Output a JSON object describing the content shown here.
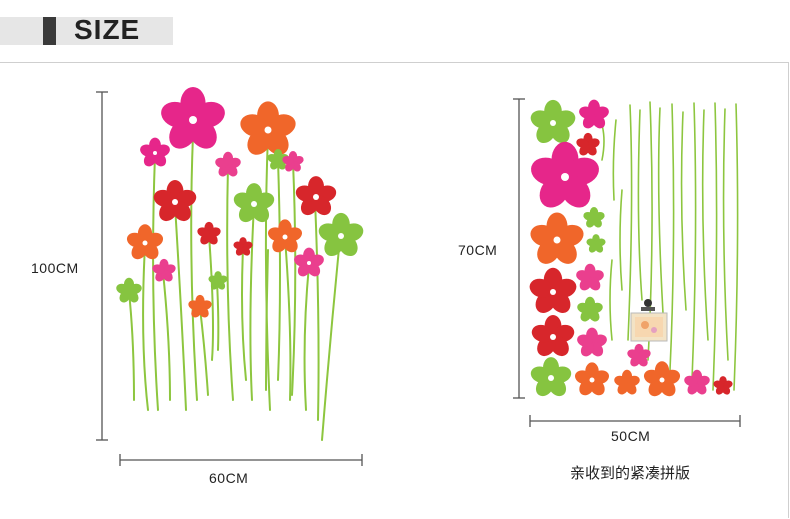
{
  "header": {
    "title": "SIZE"
  },
  "left_panel": {
    "height_label": "100CM",
    "width_label": "60CM"
  },
  "right_panel": {
    "height_label": "70CM",
    "width_label": "50CM",
    "caption": "亲收到的紧凑拼版"
  },
  "colors": {
    "magenta": "#e6268a",
    "orange": "#f0662a",
    "red": "#d7262b",
    "green": "#86c440",
    "pink": "#ea3f8e",
    "stem": "#8dc63f"
  }
}
